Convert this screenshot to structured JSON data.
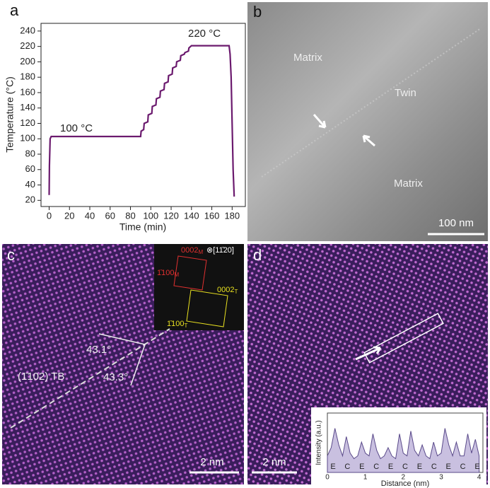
{
  "chart_data": [
    {
      "type": "line",
      "xlabel": "Time (min)",
      "ylabel": "Temperature (°C)",
      "color": "#6b1a6e",
      "x": [
        0,
        0.3,
        1,
        2,
        90,
        90.5,
        93,
        93.5,
        97,
        97.5,
        101,
        101.5,
        105,
        105.5,
        109,
        109.5,
        113,
        113.5,
        117,
        117.5,
        121,
        121.5,
        125,
        125.5,
        129,
        129.5,
        133,
        133.5,
        137,
        137.5,
        140,
        141,
        177,
        178,
        179,
        180,
        181,
        182
      ],
      "values": [
        27,
        65,
        100,
        103,
        103,
        110,
        112,
        120,
        122,
        131,
        133,
        142,
        144,
        152,
        154,
        162,
        164,
        172,
        174,
        182,
        184,
        192,
        194,
        200,
        202,
        208,
        210,
        212,
        214,
        218,
        221,
        221,
        221,
        210,
        180,
        120,
        60,
        25
      ],
      "xlim": [
        -8,
        193
      ],
      "ylim": [
        12,
        250
      ],
      "xticks": [
        0,
        20,
        40,
        60,
        80,
        100,
        120,
        140,
        160,
        180
      ],
      "yticks": [
        20,
        40,
        60,
        80,
        100,
        120,
        140,
        160,
        180,
        200,
        220,
        240
      ],
      "annotations": [
        "100 °C",
        "220 °C"
      ]
    },
    {
      "type": "area",
      "xlabel": "Distance (nm)",
      "ylabel": "Intensity (a.u.)",
      "color": "#5a4a8a",
      "x": [
        0,
        0.1,
        0.2,
        0.3,
        0.4,
        0.5,
        0.6,
        0.7,
        0.8,
        0.9,
        1,
        1.1,
        1.2,
        1.3,
        1.4,
        1.5,
        1.6,
        1.7,
        1.8,
        1.9,
        2,
        2.1,
        2.2,
        2.3,
        2.4,
        2.5,
        2.6,
        2.7,
        2.8,
        2.9,
        3,
        3.1,
        3.2,
        3.3,
        3.4,
        3.5,
        3.6,
        3.7,
        3.8,
        3.9,
        4
      ],
      "values": [
        0.3,
        0.45,
        0.8,
        0.5,
        0.3,
        0.65,
        0.35,
        0.25,
        0.3,
        0.55,
        0.35,
        0.3,
        0.7,
        0.4,
        0.25,
        0.3,
        0.45,
        0.3,
        0.25,
        0.7,
        0.35,
        0.3,
        0.75,
        0.4,
        0.3,
        0.5,
        0.3,
        0.25,
        0.55,
        0.3,
        0.35,
        0.8,
        0.5,
        0.3,
        0.55,
        0.3,
        0.3,
        0.7,
        0.35,
        0.6,
        0.3
      ],
      "xlim": [
        0,
        4.1
      ],
      "ylim": [
        0,
        1
      ],
      "xticks": [
        0,
        1,
        2,
        3,
        4
      ],
      "site_labels": [
        "E",
        "C",
        "E",
        "C",
        "E",
        "C",
        "E",
        "C",
        "E",
        "C",
        "E"
      ]
    }
  ],
  "panel_labels": [
    "a",
    "b",
    "c",
    "d"
  ],
  "panel_b": {
    "annotations": [
      "Matrix",
      "Twin",
      "Matrix"
    ],
    "scale_bar": "100 nm"
  },
  "panel_c": {
    "angles": [
      "43.1°",
      "43.3°"
    ],
    "boundary": "(1̄102) TB",
    "zone_axis": "⊗[11̄20]",
    "fft_labels": [
      {
        "text": "0002",
        "sub": "M"
      },
      {
        "text": "1̄100",
        "sub": "M"
      },
      {
        "text": "0002",
        "sub": "T"
      },
      {
        "text": "1̄100",
        "sub": "T"
      }
    ],
    "scale_bar": "2 nm"
  },
  "panel_d": {
    "scale_bar": "2 nm"
  }
}
